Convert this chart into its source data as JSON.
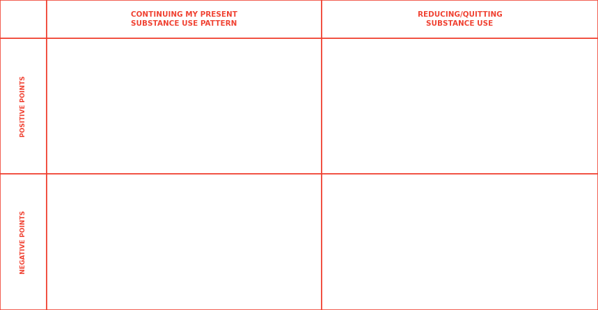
{
  "col_headers": [
    "CONTINUING MY PRESENT\nSUBSTANCE USE PATTERN",
    "REDUCING/QUITTING\nSUBSTANCE USE"
  ],
  "row_headers": [
    "POSITIVE POINTS",
    "NEGATIVE POINTS"
  ],
  "text_color": "#f04030",
  "border_color": "#f04030",
  "background_color": "#ffffff",
  "font_size_header": 7.5,
  "font_size_row": 6.5,
  "border_linewidth": 1.2,
  "fig_width": 8.59,
  "fig_height": 4.46,
  "dpi": 100,
  "col_bounds": [
    0.0,
    0.078,
    0.538,
    1.0
  ],
  "row_bounds": [
    0.0,
    0.123,
    0.561,
    1.0
  ]
}
